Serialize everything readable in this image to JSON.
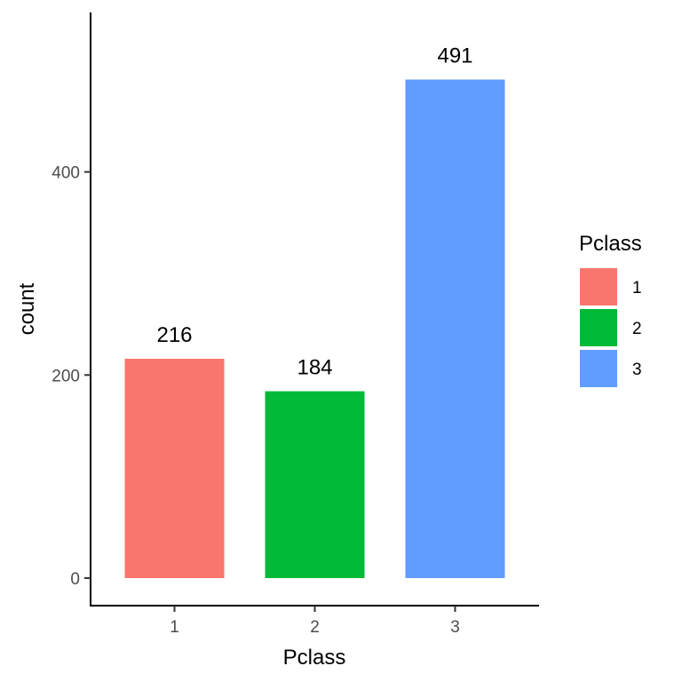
{
  "chart_data": {
    "type": "bar",
    "categories": [
      "1",
      "2",
      "3"
    ],
    "values": [
      216,
      184,
      491
    ],
    "data_labels": [
      "216",
      "184",
      "491"
    ],
    "colors": [
      "#F8766D",
      "#00BA38",
      "#619CFF"
    ],
    "xlabel": "Pclass",
    "ylabel": "count",
    "ylim": [
      0,
      540
    ],
    "yticks": [
      0,
      200,
      400
    ],
    "ytick_labels": [
      "0",
      "200",
      "400"
    ],
    "grid": false,
    "legend": {
      "title": "Pclass",
      "placement": "right",
      "entries": [
        "1",
        "2",
        "3"
      ]
    }
  }
}
